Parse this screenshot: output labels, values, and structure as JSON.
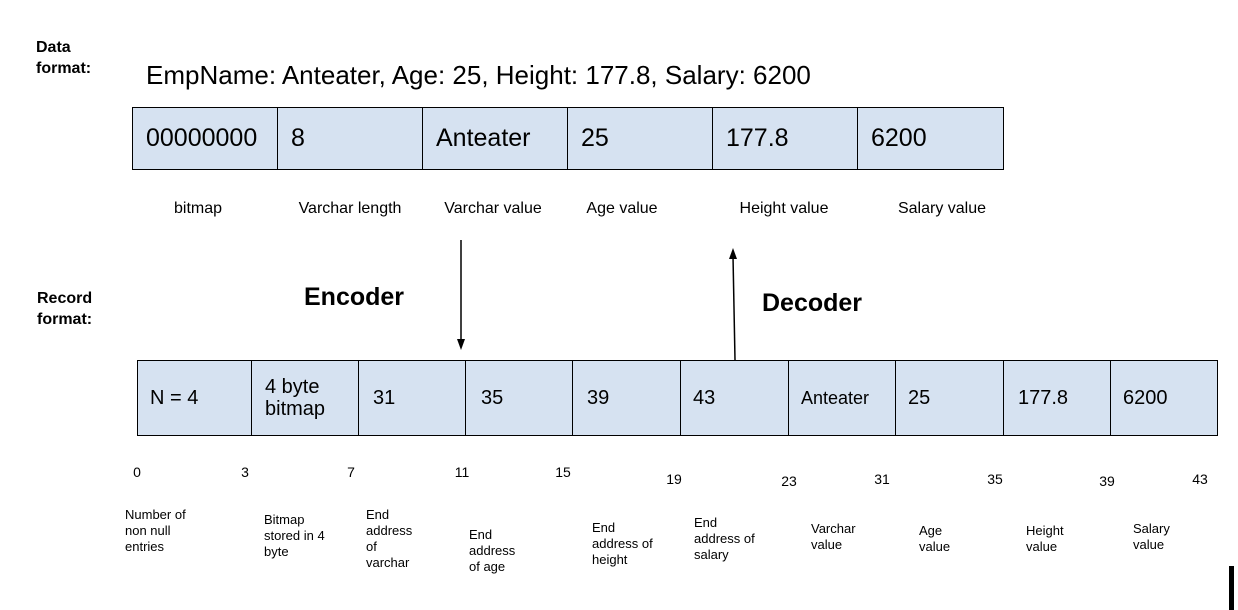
{
  "data_format": {
    "label_line1": "Data",
    "label_line2": "format:",
    "string": "EmpName: Anteater, Age: 25, Height: 177.8, Salary: 6200",
    "cells": [
      "00000000",
      "8",
      "Anteater",
      "25",
      "177.8",
      "6200"
    ],
    "field_names": [
      "bitmap",
      "Varchar length",
      "Varchar value",
      "Age value",
      "Height value",
      "Salary value"
    ]
  },
  "record_format": {
    "label_line1": "Record",
    "label_line2": "format:",
    "cells": [
      "N = 4",
      "4 byte bitmap",
      "31",
      "35",
      "39",
      "43",
      "Anteater",
      "25",
      "177.8",
      "6200"
    ],
    "offsets": [
      "0",
      "3",
      "7",
      "11",
      "15",
      "19",
      "23",
      "31",
      "35",
      "39",
      "43"
    ],
    "descriptions": [
      "Number of non null entries",
      "Bitmap stored in 4 byte",
      "End address of varchar",
      "End address of age",
      "End address of height",
      "End address of salary",
      "Varchar value",
      "Age value",
      "Height value",
      "Salary value"
    ]
  },
  "encoder_label": "Encoder",
  "decoder_label": "Decoder"
}
